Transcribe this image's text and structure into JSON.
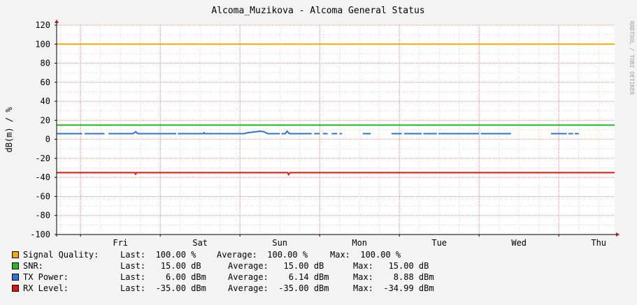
{
  "title": "Alcoma_Muzikova - Alcoma General Status",
  "watermark": "RRDTOOL / TOBI OETIKER",
  "chart_data": {
    "type": "line",
    "ylabel": "dB(m) / %",
    "ylim": [
      -100,
      120
    ],
    "yticks": [
      120,
      100,
      80,
      60,
      40,
      20,
      0,
      -20,
      -40,
      -60,
      -80,
      -100
    ],
    "ytick_labels": [
      "120",
      "100",
      "80",
      "60",
      "40",
      "20",
      "0",
      "-20",
      "-40",
      "-60",
      "-80",
      "-100"
    ],
    "xlim_days": [
      0,
      7
    ],
    "xticks": [
      {
        "label": "Fri",
        "day": 0.8
      },
      {
        "label": "Sat",
        "day": 1.8
      },
      {
        "label": "Sun",
        "day": 2.8
      },
      {
        "label": "Mon",
        "day": 3.8
      },
      {
        "label": "Tue",
        "day": 4.8
      },
      {
        "label": "Wed",
        "day": 5.8
      },
      {
        "label": "Thu",
        "day": 6.8
      }
    ],
    "grid": true,
    "legend_position": "bottom",
    "series": [
      {
        "name": "Signal Quality:",
        "color": "#f5a800",
        "points": [
          [
            0,
            100
          ],
          [
            7,
            100
          ]
        ],
        "last": "Last:  100.00 %",
        "average": "Average:  100.00 %",
        "max": "Max:  100.00 %"
      },
      {
        "name": "SNR:",
        "color": "#1fbb1f",
        "points": [
          [
            0,
            15
          ],
          [
            7,
            15
          ]
        ],
        "last": "Last:   15.00 dB",
        "average": "Average:   15.00 dB",
        "max": "Max:   15.00 dB"
      },
      {
        "name": "TX Power:",
        "color": "#2a75d3",
        "segments": [
          [
            [
              0.0,
              6
            ],
            [
              0.32,
              6
            ]
          ],
          [
            [
              0.35,
              6
            ],
            [
              0.6,
              6
            ]
          ],
          [
            [
              0.65,
              6
            ],
            [
              0.96,
              6
            ],
            [
              0.99,
              8
            ],
            [
              1.02,
              6
            ],
            [
              1.5,
              6
            ]
          ],
          [
            [
              1.52,
              6
            ],
            [
              1.84,
              6
            ],
            [
              1.85,
              7
            ],
            [
              1.86,
              6
            ],
            [
              2.35,
              6
            ],
            [
              2.4,
              7
            ],
            [
              2.5,
              8
            ],
            [
              2.55,
              8.5
            ],
            [
              2.6,
              8
            ],
            [
              2.65,
              6
            ],
            [
              2.8,
              6
            ]
          ],
          [
            [
              2.82,
              6
            ],
            [
              2.87,
              6
            ],
            [
              2.89,
              8.5
            ],
            [
              2.92,
              6
            ],
            [
              3.2,
              6
            ]
          ],
          [
            [
              3.23,
              6
            ],
            [
              3.3,
              6
            ]
          ],
          [
            [
              3.34,
              6
            ],
            [
              3.4,
              6
            ]
          ],
          [
            [
              3.45,
              6
            ],
            [
              3.52,
              6
            ]
          ],
          [
            [
              3.55,
              6
            ],
            [
              3.58,
              6
            ]
          ],
          [
            [
              3.84,
              6
            ],
            [
              3.94,
              6
            ]
          ],
          [
            [
              4.2,
              6
            ],
            [
              4.33,
              6
            ]
          ],
          [
            [
              4.36,
              6
            ],
            [
              4.58,
              6
            ]
          ],
          [
            [
              4.6,
              6
            ],
            [
              4.77,
              6
            ]
          ],
          [
            [
              4.79,
              6
            ],
            [
              5.3,
              6
            ]
          ],
          [
            [
              5.32,
              6
            ],
            [
              5.7,
              6
            ]
          ],
          [
            [
              6.2,
              6
            ],
            [
              6.4,
              6
            ]
          ],
          [
            [
              6.42,
              6
            ],
            [
              6.48,
              6
            ]
          ],
          [
            [
              6.5,
              6
            ],
            [
              6.55,
              6
            ]
          ]
        ],
        "last": "Last:    6.00 dBm",
        "average": "Average:    6.14 dBm",
        "max": "Max:    8.88 dBm"
      },
      {
        "name": "RX Level:",
        "color": "#e2150a",
        "points": [
          [
            0,
            -35
          ],
          [
            0.98,
            -35
          ],
          [
            0.99,
            -36.5
          ],
          [
            1.0,
            -35
          ],
          [
            2.9,
            -35
          ],
          [
            2.91,
            -37
          ],
          [
            2.93,
            -35
          ],
          [
            7,
            -35
          ]
        ],
        "last": "Last:  -35.00 dBm",
        "average": "Average:  -35.00 dBm",
        "max": "Max:  -34.99 dBm"
      }
    ]
  }
}
